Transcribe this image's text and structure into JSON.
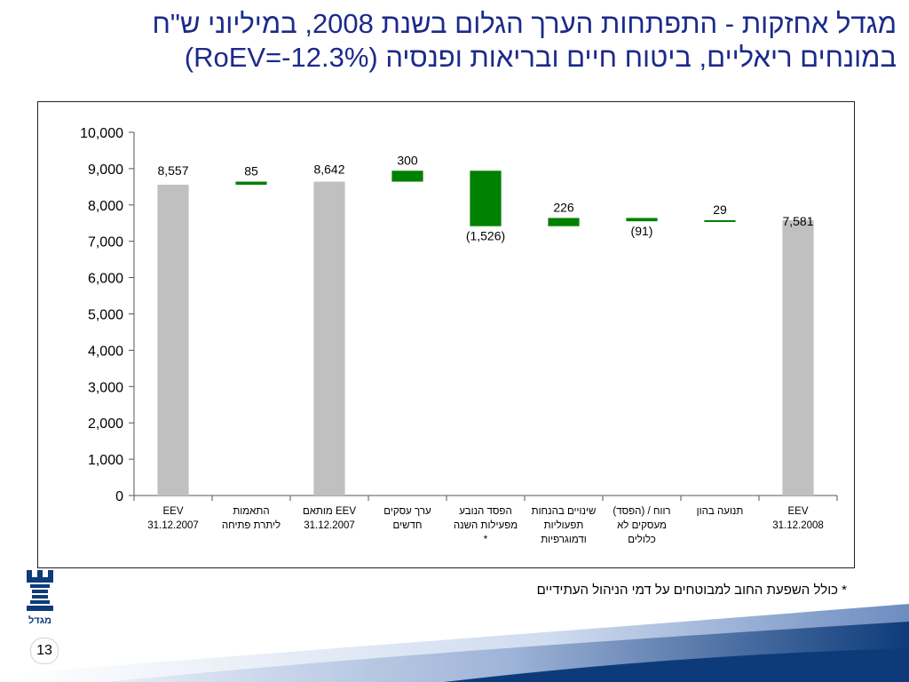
{
  "slide": {
    "title_line1": "מגדל אחזקות - התפתחות הערך הגלום בשנת 2008, במיליוני ש\"ח",
    "title_line2": "במונחים ריאליים, ביטוח חיים ובריאות ופנסיה (RoEV=-12.3%)",
    "footnote": "* כולל השפעת החוב למבוטחים על דמי הניהול העתידיים",
    "page_number": "13",
    "logo_text": "מגדל"
  },
  "colors": {
    "title": "#1b2a8a",
    "total_bar": "#c0c0c0",
    "change_bar": "#008000",
    "navy": "#0d3b7a"
  },
  "chart_data": {
    "type": "bar",
    "subtype": "waterfall",
    "ylim": [
      0,
      10000
    ],
    "yticks": [
      0,
      1000,
      2000,
      3000,
      4000,
      5000,
      6000,
      7000,
      8000,
      9000,
      10000
    ],
    "ytick_labels": [
      "0",
      "1,000",
      "2,000",
      "3,000",
      "4,000",
      "5,000",
      "6,000",
      "7,000",
      "8,000",
      "9,000",
      "10,000"
    ],
    "grid": false,
    "legend": "none",
    "categories": [
      {
        "label_lines": [
          "EEV",
          "31.12.2007"
        ],
        "kind": "total",
        "start": 0,
        "end": 8557,
        "value_label": "8,557"
      },
      {
        "label_lines": [
          "התאמות",
          "ליתרת פתיחה"
        ],
        "kind": "change",
        "start": 8557,
        "end": 8642,
        "value_label": "85"
      },
      {
        "label_lines": [
          "EEV מותאם",
          "31.12.2007"
        ],
        "kind": "total",
        "start": 0,
        "end": 8642,
        "value_label": "8,642"
      },
      {
        "label_lines": [
          "ערך עסקים",
          "חדשים"
        ],
        "kind": "change",
        "start": 8642,
        "end": 8942,
        "value_label": "300"
      },
      {
        "label_lines": [
          "הפסד הנובע",
          "מפעילות השנה",
          "*"
        ],
        "kind": "change",
        "start": 8942,
        "end": 7416,
        "value_label": "(1,526)"
      },
      {
        "label_lines": [
          "שינויים בהנחות",
          "תפעוליות",
          "ודמוגרפיות"
        ],
        "kind": "change",
        "start": 7416,
        "end": 7642,
        "value_label": "226"
      },
      {
        "label_lines": [
          "רווח / (הפסד)",
          "מעסקים לא",
          "כלולים"
        ],
        "kind": "change",
        "start": 7642,
        "end": 7551,
        "value_label": "(91)"
      },
      {
        "label_lines": [
          "תנועה בהון"
        ],
        "kind": "change",
        "start": 7551,
        "end": 7580,
        "value_label": "29"
      },
      {
        "label_lines": [
          "EEV",
          "31.12.2008"
        ],
        "kind": "total",
        "start": 0,
        "end": 7581,
        "value_label": "7,581"
      }
    ]
  }
}
